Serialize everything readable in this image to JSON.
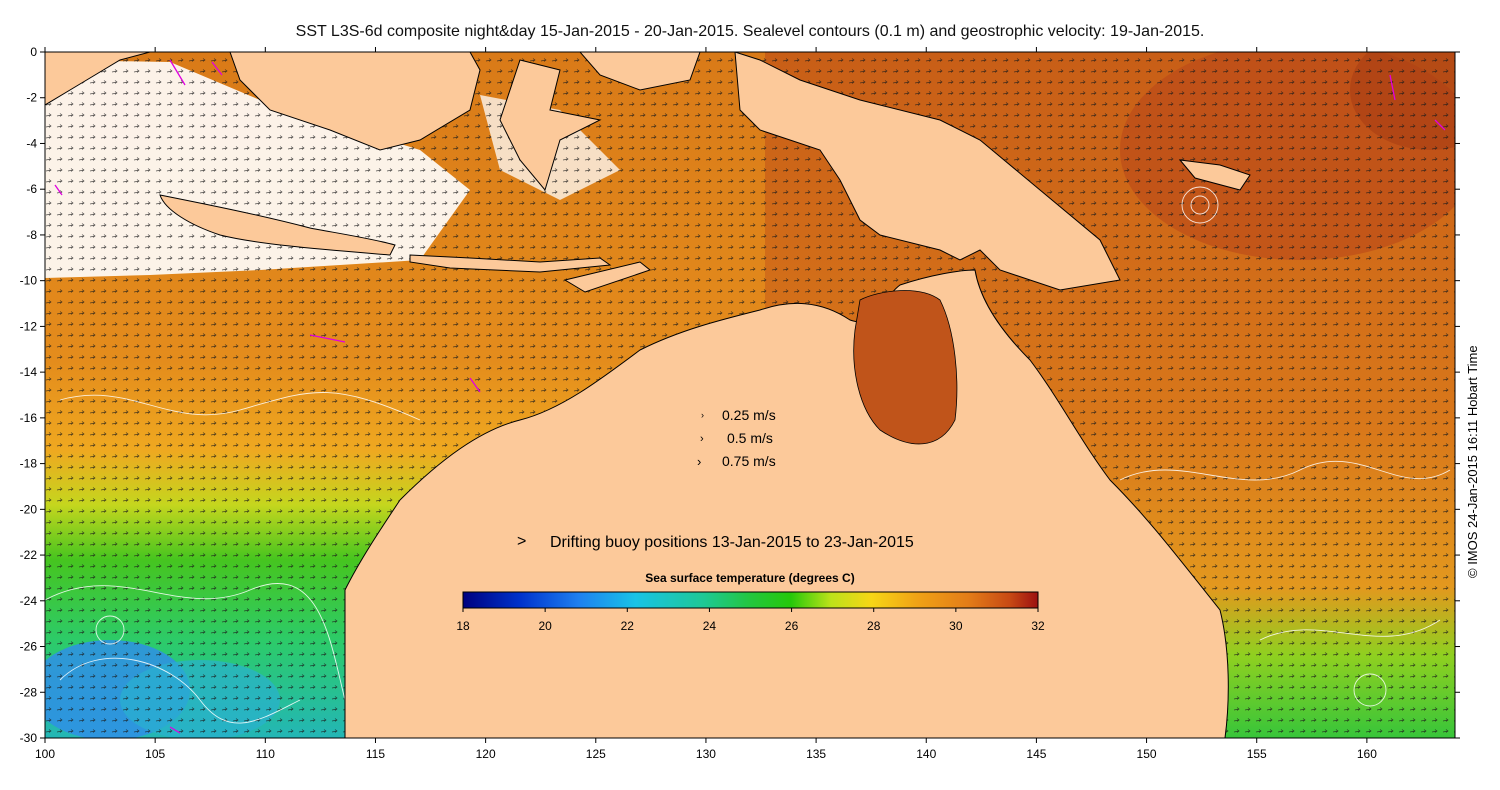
{
  "title": "SST L3S-6d composite night&day 15-Jan-2015 - 20-Jan-2015. Sealevel contours (0.1 m) and geostrophic velocity: 19-Jan-2015.",
  "credit": "© IMOS 24-Jan-2015 16:11 Hobart Time",
  "axes": {
    "x_ticks": [
      "100",
      "105",
      "110",
      "115",
      "120",
      "125",
      "130",
      "135",
      "140",
      "145",
      "150",
      "155",
      "160"
    ],
    "y_ticks": [
      "0",
      "-2",
      "-4",
      "-6",
      "-8",
      "-10",
      "-12",
      "-14",
      "-16",
      "-18",
      "-20",
      "-22",
      "-24",
      "-26",
      "-28",
      "-30"
    ],
    "lon_range": [
      100,
      164
    ],
    "lat_range": [
      -30,
      0
    ]
  },
  "velocity_legend": {
    "items": [
      "0.25 m/s",
      "0.5 m/s",
      "0.75 m/s"
    ],
    "values": [
      0.25,
      0.5,
      0.75
    ]
  },
  "buoy_legend": {
    "label": "Drifting buoy positions 13-Jan-2015 to 23-Jan-2015",
    "color": "#e000e0"
  },
  "colorbar": {
    "title": "Sea surface temperature (degrees C)",
    "ticks": [
      "18",
      "20",
      "22",
      "24",
      "26",
      "28",
      "30",
      "32"
    ],
    "range": [
      18,
      32
    ]
  },
  "colors": {
    "land": "#fcc99a",
    "cloud": "#ffffff",
    "sst_warm": "#e08a1c",
    "sst_hot": "#b34a14",
    "sst_mid": "#f5b820",
    "sst_green": "#3fc21e",
    "sst_cool": "#1fc5a8",
    "sst_cold": "#35a0e8",
    "contour": "#ffffff",
    "coast": "#000000"
  }
}
